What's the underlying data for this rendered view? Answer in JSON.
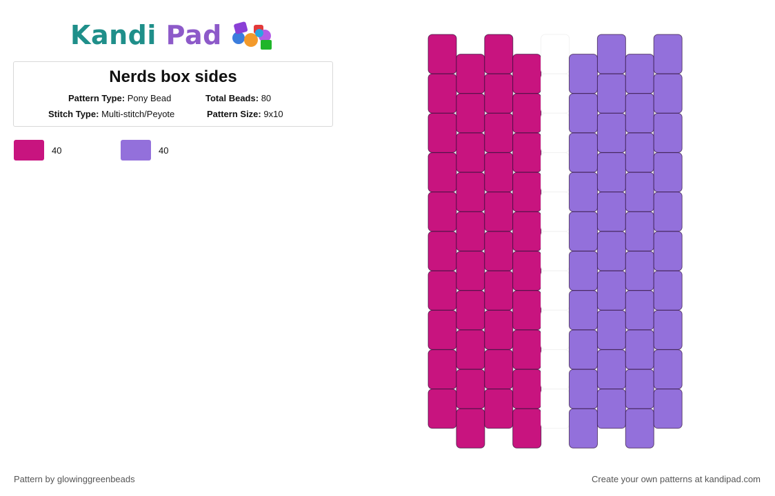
{
  "logo": {
    "word1": "Kandi",
    "word2": "Pad"
  },
  "pattern": {
    "title": "Nerds box sides",
    "type_label": "Pattern Type:",
    "type_value": "Pony Bead",
    "beads_label": "Total Beads:",
    "beads_value": "80",
    "stitch_label": "Stitch Type:",
    "stitch_value": "Multi-stitch/Peyote",
    "size_label": "Pattern Size:",
    "size_value": "9x10"
  },
  "legend": [
    {
      "color": "#c8147f",
      "count": "40"
    },
    {
      "color": "#9370db",
      "count": "40"
    }
  ],
  "grid": {
    "columns": 9,
    "rows": 10,
    "column_colors": [
      "#c8147f",
      "#c8147f",
      "#c8147f",
      "#c8147f",
      "#ffffff",
      "#9370db",
      "#9370db",
      "#9370db",
      "#9370db"
    ]
  },
  "footer": {
    "left": "Pattern by glowinggreenbeads",
    "right": "Create your own patterns at kandipad.com"
  }
}
